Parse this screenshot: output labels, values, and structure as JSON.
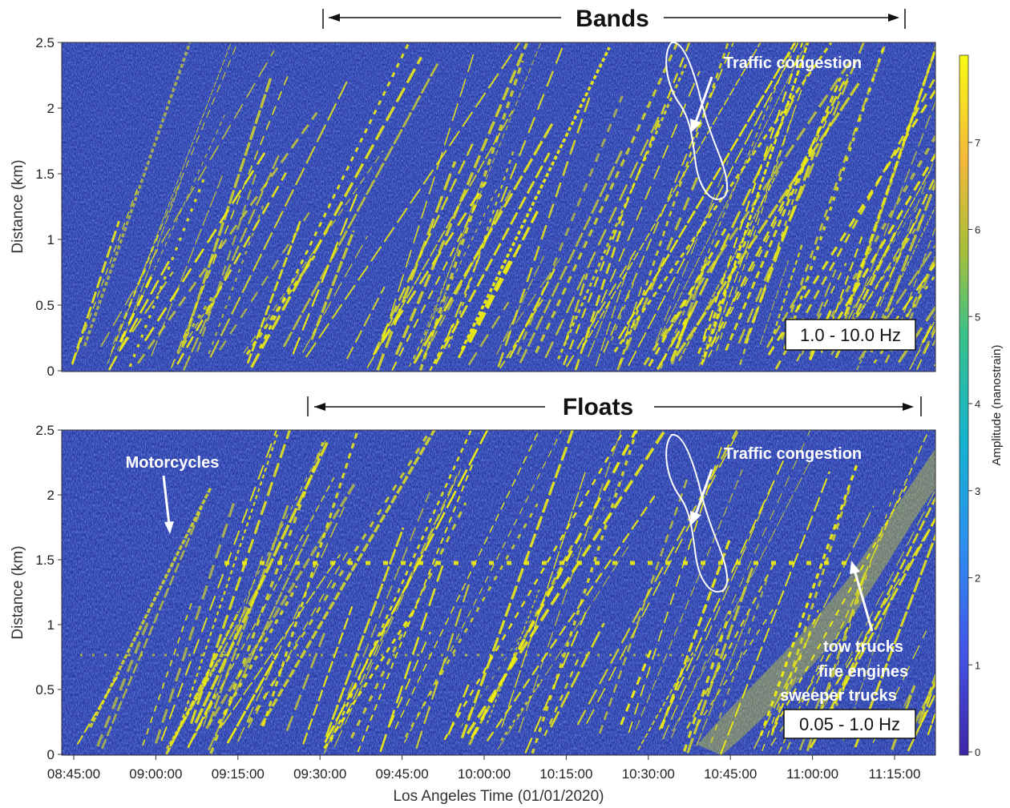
{
  "chart_data": [
    {
      "type": "heatmap",
      "title": "Bands",
      "panel_label": "1.0 - 10.0 Hz",
      "ylabel": "Distance (km)",
      "ylim": [
        0,
        2.5
      ],
      "yticks": [
        "0",
        "0.5",
        "1",
        "1.5",
        "2",
        "2.5"
      ],
      "annotations": [
        {
          "text": "Traffic congestion"
        }
      ]
    },
    {
      "type": "heatmap",
      "title": "Floats",
      "panel_label": "0.05 - 1.0 Hz",
      "ylabel": "Distance (km)",
      "ylim": [
        0,
        2.5
      ],
      "yticks": [
        "0",
        "0.5",
        "1",
        "1.5",
        "2",
        "2.5"
      ],
      "annotations": [
        {
          "text": "Motorcycles"
        },
        {
          "text": "Traffic congestion"
        },
        {
          "text": "tow trucks\nfire engines\nsweeper trucks"
        }
      ]
    }
  ],
  "xaxis": {
    "label": "Los Angeles Time (01/01/2020)",
    "ticks": [
      "08:45:00",
      "09:00:00",
      "09:15:00",
      "09:30:00",
      "09:45:00",
      "10:00:00",
      "10:15:00",
      "10:30:00",
      "10:45:00",
      "11:00:00",
      "11:15:00"
    ]
  },
  "colorbar": {
    "label": "Amplitude (nanostrain)",
    "range": [
      0,
      8
    ],
    "ticks": [
      "0",
      "1",
      "2",
      "3",
      "4",
      "5",
      "6",
      "7"
    ]
  },
  "colors": {
    "background": "#2d3aa8",
    "signal": "#f2f00e"
  }
}
